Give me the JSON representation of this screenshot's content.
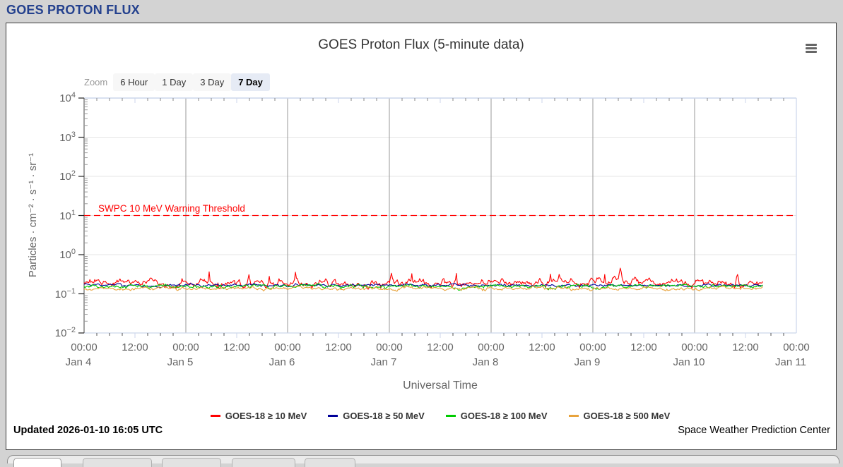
{
  "page": {
    "header_title": "GOES PROTON FLUX"
  },
  "toolbar": {
    "zoom_label": "Zoom",
    "zoom_buttons": [
      {
        "label": "6 Hour",
        "selected": false
      },
      {
        "label": "1 Day",
        "selected": false
      },
      {
        "label": "3 Day",
        "selected": false
      },
      {
        "label": "7 Day",
        "selected": true
      }
    ],
    "menu_icon": "hamburger-menu-icon"
  },
  "chart_data": {
    "type": "line",
    "title": "GOES Proton Flux (5-minute data)",
    "xlabel": "Universal Time",
    "ylabel": "Particles · cm⁻² · s⁻¹ · sr⁻¹",
    "y_scale": "log",
    "ylim": [
      0.01,
      10000
    ],
    "y_ticks": [
      {
        "base": "10",
        "exp": "4"
      },
      {
        "base": "10",
        "exp": "3"
      },
      {
        "base": "10",
        "exp": "2"
      },
      {
        "base": "10",
        "exp": "1"
      },
      {
        "base": "10",
        "exp": "0"
      },
      {
        "base": "10",
        "exp": "−1"
      },
      {
        "base": "10",
        "exp": "−2"
      }
    ],
    "x_dates": [
      "Jan 4",
      "Jan 5",
      "Jan 6",
      "Jan 7",
      "Jan 8",
      "Jan 9",
      "Jan 10",
      "Jan 11"
    ],
    "x_time_labels": {
      "midnight": "00:00",
      "noon": "12:00"
    },
    "grid": {
      "vertical_at": "day boundaries",
      "horizontal_at": "decades",
      "legend_position": "bottom"
    },
    "threshold": {
      "label": "SWPC 10 MeV Warning Threshold",
      "value": 10,
      "color": "#ff0000",
      "style": "dashed"
    },
    "series": [
      {
        "name": "GOES-18 ≥ 10 MeV",
        "color": "#ff0000",
        "approx_baseline": 0.19,
        "noise": 0.17,
        "spikes": [
          {
            "day": 5.27,
            "value": 0.46
          },
          {
            "day": 3.02,
            "value": 0.34
          },
          {
            "day": 6.42,
            "value": 0.33
          },
          {
            "day": 1.62,
            "value": 0.31
          }
        ]
      },
      {
        "name": "GOES-18 ≥ 50 MeV",
        "color": "#000099",
        "approx_baseline": 0.165,
        "noise": 0.06,
        "spikes": []
      },
      {
        "name": "GOES-18 ≥ 100 MeV",
        "color": "#00cc00",
        "approx_baseline": 0.152,
        "noise": 0.08,
        "spikes": []
      },
      {
        "name": "GOES-18 ≥ 500 MeV",
        "color": "#e8a33c",
        "approx_baseline": 0.136,
        "noise": 0.08,
        "spikes": []
      }
    ],
    "x_data_end_day": 6.67
  },
  "footer": {
    "updated": "Updated 2026-01-10 16:05 UTC",
    "credit": "Space Weather Prediction Center"
  }
}
